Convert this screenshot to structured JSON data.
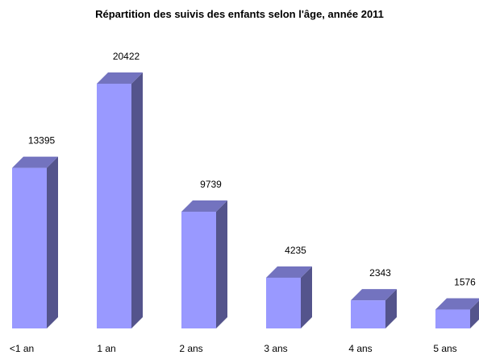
{
  "chart_data": {
    "type": "bar3d",
    "title": "Répartition des suivis des enfants selon l'âge, année 2011",
    "categories": [
      "<1 an",
      "1 an",
      "2 ans",
      "3 ans",
      "4 ans",
      "5 ans"
    ],
    "values": [
      13395,
      20422,
      9739,
      4235,
      2343,
      1576
    ],
    "color": "#9999ff"
  }
}
